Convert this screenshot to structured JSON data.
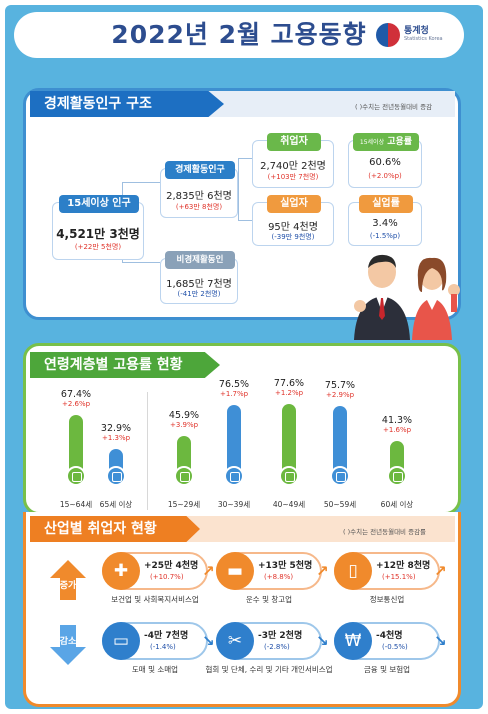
{
  "title": "2022년 2월 고용동향",
  "logo": {
    "name": "통계청",
    "sub": "Statistics Korea"
  },
  "structure": {
    "heading": "경제활동인구 구조",
    "note": "( )수치는 전년동월대비 증감",
    "pop15": {
      "label": "15세이상 인구",
      "value": "4,521만 3천명",
      "change": "(+22만 5천명)"
    },
    "active": {
      "label": "경제활동인구",
      "value": "2,835만 6천명",
      "change": "(+63만 8천명)"
    },
    "inactive": {
      "label": "비경제활동인구",
      "value": "1,685만 7천명",
      "change": "(-41만 2천명)"
    },
    "employed": {
      "label": "취업자",
      "value": "2,740만 2천명",
      "change": "(+103만 7천명)"
    },
    "unemployed": {
      "label": "실업자",
      "value": "95만 4천명",
      "change": "(-39만 9천명)"
    },
    "emp_rate": {
      "label_small": "15세이상",
      "label": "고용률",
      "value": "60.6%",
      "change": "(+2.0%p)"
    },
    "unemp_rate": {
      "label": "실업률",
      "value": "3.4%",
      "change": "(-1.5%p)"
    }
  },
  "age": {
    "heading": "연령계층별 고용률 현황",
    "bars": [
      {
        "cat": "15~64세",
        "pct": "67.4%",
        "pp": "+2.6%p",
        "rate": 67.4,
        "color": "#6cb83f"
      },
      {
        "cat": "65세 이상",
        "pct": "32.9%",
        "pp": "+1.3%p",
        "rate": 32.9,
        "color": "#3f8fd6"
      },
      {
        "cat": "15~29세",
        "pct": "45.9%",
        "pp": "+3.9%p",
        "rate": 45.9,
        "color": "#6cb83f"
      },
      {
        "cat": "30~39세",
        "pct": "76.5%",
        "pp": "+1.7%p",
        "rate": 76.5,
        "color": "#3f8fd6"
      },
      {
        "cat": "40~49세",
        "pct": "77.6%",
        "pp": "+1.2%p",
        "rate": 77.6,
        "color": "#6cb83f"
      },
      {
        "cat": "50~59세",
        "pct": "75.7%",
        "pp": "+2.9%p",
        "rate": 75.7,
        "color": "#3f8fd6"
      },
      {
        "cat": "60세 이상",
        "pct": "41.3%",
        "pp": "+1.6%p",
        "rate": 41.3,
        "color": "#6cb83f"
      }
    ]
  },
  "industry": {
    "heading": "산업별 취업자 현황",
    "note": "( )수치는 전년동월대비 증감률",
    "increase_label": "증가",
    "decrease_label": "감소",
    "increase": [
      {
        "name": "보건업 및 사회복지서비스업",
        "value": "+25만 4천명",
        "pct": "(+10.7%)",
        "icon": "medical-kit-icon"
      },
      {
        "name": "운수 및 창고업",
        "value": "+13만 5천명",
        "pct": "(+8.8%)",
        "icon": "truck-icon"
      },
      {
        "name": "정보통신업",
        "value": "+12만 8천명",
        "pct": "(+15.1%)",
        "icon": "smartphone-icon"
      }
    ],
    "decrease": [
      {
        "name": "도매 및 소매업",
        "value": "-4만 7천명",
        "pct": "(-1.4%)",
        "icon": "shopping-basket-icon"
      },
      {
        "name": "협회 및 단체, 수리 및 기타 개인서비스업",
        "value": "-3만 2천명",
        "pct": "(-2.8%)",
        "icon": "tools-icon"
      },
      {
        "name": "금융 및 보험업",
        "value": "-4천명",
        "pct": "(-0.5%)",
        "icon": "money-icon"
      }
    ]
  }
}
